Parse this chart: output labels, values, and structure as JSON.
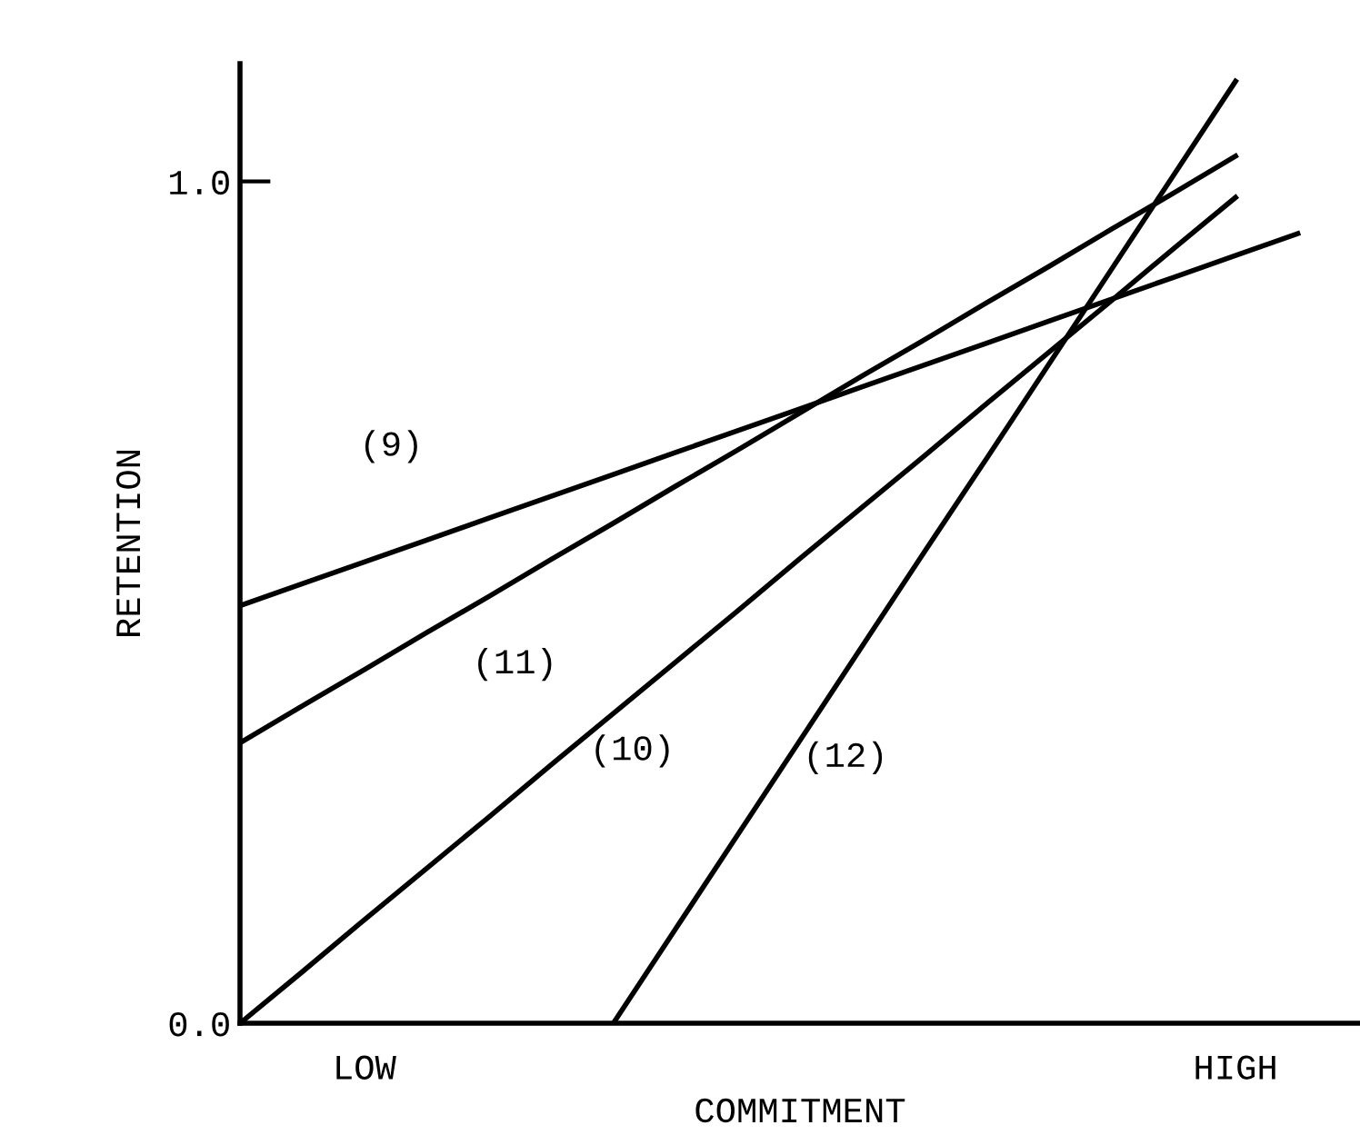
{
  "chart_data": {
    "type": "line",
    "xlabel": "COMMITMENT",
    "ylabel": "RETENTION",
    "categories": [
      null,
      null,
      "LOW",
      null,
      null,
      null,
      null,
      null,
      null,
      null,
      null,
      null,
      null,
      null,
      null,
      null,
      "HIGH",
      null,
      null
    ],
    "series": [
      {
        "name": "(9)",
        "color": "#000000",
        "values": [
          0.496,
          0.522,
          0.548,
          0.574,
          0.6,
          0.626,
          0.652,
          0.678,
          0.704,
          0.73,
          0.756,
          0.782,
          0.808,
          0.834,
          0.86,
          0.886,
          0.912,
          0.938,
          null
        ]
      },
      {
        "name": "(11)",
        "color": "#000000",
        "values": [
          0.333,
          0.377,
          0.42,
          0.464,
          0.507,
          0.551,
          0.594,
          0.638,
          0.681,
          0.725,
          0.769,
          0.812,
          0.856,
          0.899,
          0.943,
          0.986,
          1.03,
          null,
          null
        ]
      },
      {
        "name": "(10)",
        "color": "#000000",
        "values": [
          0.0,
          0.061,
          0.123,
          0.184,
          0.245,
          0.307,
          0.368,
          0.429,
          0.49,
          0.552,
          0.613,
          0.674,
          0.736,
          0.797,
          0.858,
          0.92,
          0.981,
          null,
          null
        ]
      },
      {
        "name": "(12)",
        "color": "#000000",
        "values": [
          null,
          null,
          null,
          null,
          null,
          null,
          0.0,
          0.112,
          0.224,
          0.336,
          0.448,
          0.56,
          0.671,
          0.783,
          0.895,
          1.007,
          1.119,
          null,
          null
        ]
      }
    ],
    "ylim": [
      0,
      1.14
    ],
    "yticks": [
      {
        "value": 0,
        "label": "0.0"
      },
      {
        "value": 1,
        "label": "1.0"
      }
    ],
    "grid": false,
    "legend": false,
    "marker": "none",
    "line_style": "solid"
  }
}
